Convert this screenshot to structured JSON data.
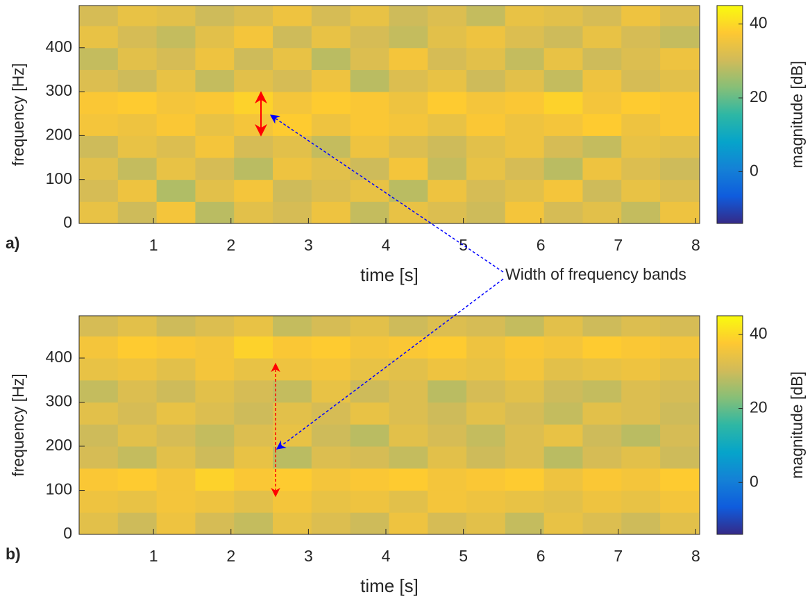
{
  "chart_data": [
    {
      "type": "heatmap",
      "panel_label": "a)",
      "xlabel": "time [s]",
      "ylabel": "frequency [Hz]",
      "colorbar_label": "magnitude [dB]",
      "annotation": "Width of frequency bands",
      "colormap": "parula",
      "xlim": [
        0.04,
        8.05
      ],
      "ylim": [
        0,
        496
      ],
      "clim": [
        -14,
        45
      ],
      "xticks": [
        1,
        2,
        3,
        4,
        5,
        6,
        7,
        8
      ],
      "yticks": [
        0,
        100,
        200,
        300,
        400
      ],
      "cticks": [
        0,
        20,
        40
      ],
      "x": [
        0.29,
        0.79,
        1.29,
        1.79,
        2.29,
        2.79,
        3.29,
        3.79,
        4.29,
        4.79,
        5.29,
        5.79,
        6.29,
        6.79,
        7.29,
        7.79
      ],
      "y": [
        25,
        75,
        125,
        175,
        225,
        275,
        325,
        375,
        425,
        475
      ],
      "z": [
        [
          34,
          30,
          36,
          28,
          33,
          31,
          35,
          29,
          34,
          32,
          30,
          36,
          31,
          33,
          29,
          35
        ],
        [
          31,
          35,
          27,
          33,
          36,
          30,
          32,
          34,
          28,
          35,
          31,
          33,
          36,
          30,
          34,
          32
        ],
        [
          33,
          29,
          34,
          31,
          28,
          35,
          33,
          30,
          36,
          29,
          34,
          31,
          28,
          35,
          32,
          30
        ],
        [
          30,
          34,
          32,
          36,
          31,
          33,
          29,
          35,
          32,
          30,
          33,
          35,
          31,
          29,
          34,
          33
        ],
        [
          36,
          35,
          37,
          34,
          36,
          38,
          35,
          37,
          36,
          34,
          37,
          35,
          36,
          38,
          35,
          37
        ],
        [
          37,
          38,
          36,
          37,
          39,
          36,
          38,
          37,
          35,
          38,
          36,
          37,
          39,
          36,
          38,
          37
        ],
        [
          32,
          30,
          34,
          29,
          33,
          31,
          35,
          28,
          32,
          34,
          30,
          33,
          29,
          35,
          31,
          33
        ],
        [
          29,
          33,
          31,
          35,
          30,
          34,
          28,
          32,
          36,
          31,
          33,
          29,
          34,
          30,
          32,
          35
        ],
        [
          34,
          31,
          29,
          33,
          36,
          30,
          34,
          31,
          29,
          33,
          35,
          32,
          30,
          34,
          31,
          29
        ],
        [
          31,
          34,
          33,
          30,
          32,
          35,
          31,
          34,
          30,
          32,
          29,
          34,
          33,
          31,
          35,
          32
        ]
      ]
    },
    {
      "type": "heatmap",
      "panel_label": "b)",
      "xlabel": "time [s]",
      "ylabel": "frequency [Hz]",
      "colorbar_label": "magnitude [dB]",
      "colormap": "parula",
      "xlim": [
        0.04,
        8.05
      ],
      "ylim": [
        0,
        496
      ],
      "clim": [
        -14,
        45
      ],
      "xticks": [
        1,
        2,
        3,
        4,
        5,
        6,
        7,
        8
      ],
      "yticks": [
        0,
        100,
        200,
        300,
        400
      ],
      "cticks": [
        0,
        20,
        40
      ],
      "x": [
        0.29,
        0.79,
        1.29,
        1.79,
        2.29,
        2.79,
        3.29,
        3.79,
        4.29,
        4.79,
        5.29,
        5.79,
        6.29,
        6.79,
        7.29,
        7.79
      ],
      "y": [
        25,
        75,
        125,
        175,
        225,
        275,
        325,
        375,
        425,
        475
      ],
      "z": [
        [
          33,
          30,
          35,
          31,
          29,
          34,
          32,
          30,
          35,
          31,
          33,
          29,
          34,
          32,
          30,
          33
        ],
        [
          35,
          34,
          36,
          35,
          33,
          36,
          34,
          35,
          33,
          36,
          35,
          34,
          33,
          35,
          34,
          36
        ],
        [
          37,
          38,
          36,
          39,
          37,
          38,
          36,
          37,
          38,
          36,
          37,
          38,
          35,
          37,
          36,
          38
        ],
        [
          31,
          29,
          33,
          30,
          34,
          28,
          32,
          31,
          29,
          33,
          30,
          32,
          28,
          31,
          33,
          30
        ],
        [
          30,
          33,
          31,
          29,
          32,
          34,
          30,
          28,
          33,
          31,
          29,
          32,
          34,
          30,
          28,
          31
        ],
        [
          33,
          31,
          34,
          32,
          30,
          33,
          31,
          34,
          32,
          30,
          33,
          31,
          29,
          33,
          32,
          30
        ],
        [
          29,
          32,
          30,
          33,
          31,
          29,
          34,
          30,
          32,
          28,
          31,
          33,
          30,
          29,
          32,
          31
        ],
        [
          34,
          35,
          33,
          36,
          34,
          35,
          36,
          34,
          33,
          35,
          34,
          36,
          33,
          34,
          35,
          33
        ],
        [
          36,
          38,
          37,
          36,
          39,
          37,
          38,
          36,
          37,
          38,
          35,
          37,
          36,
          38,
          37,
          36
        ],
        [
          31,
          33,
          30,
          32,
          34,
          29,
          31,
          33,
          30,
          32,
          31,
          29,
          33,
          30,
          32,
          31
        ]
      ]
    }
  ]
}
